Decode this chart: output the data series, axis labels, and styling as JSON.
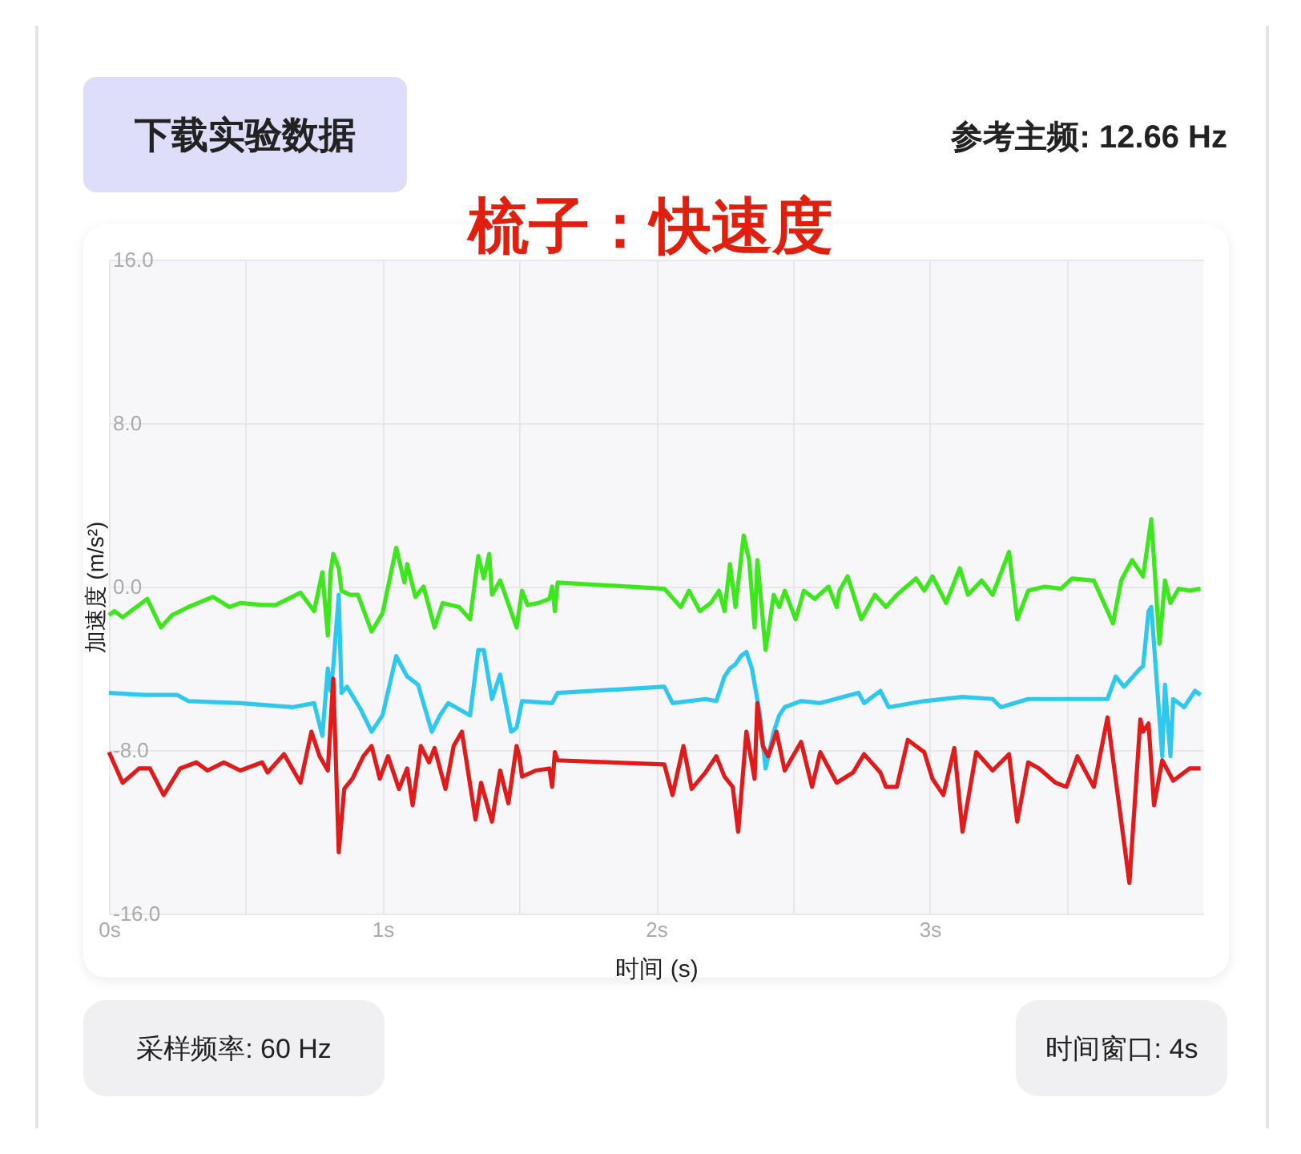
{
  "chart_data": {
    "type": "line",
    "title": "梳子：快速度",
    "xlabel": "时间 (s)",
    "ylabel": "加速度 (m/s²)",
    "annotations": [
      "下载实验数据",
      "参考主频: 12.66 Hz",
      "采样频率: 60 Hz",
      "时间窗口: 4s"
    ],
    "xlim": [
      0,
      4
    ],
    "ylim": [
      -16,
      16
    ],
    "xticks": [
      {
        "value": 0,
        "label": "0s"
      },
      {
        "value": 0.5,
        "label": null
      },
      {
        "value": 1,
        "label": "1s"
      },
      {
        "value": 1.5,
        "label": null
      },
      {
        "value": 2,
        "label": "2s"
      },
      {
        "value": 2.5,
        "label": null
      },
      {
        "value": 3,
        "label": "3s"
      },
      {
        "value": 3.5,
        "label": null
      }
    ],
    "yticks": [
      {
        "value": -16,
        "label": "-16.0"
      },
      {
        "value": -8,
        "label": "-8.0"
      },
      {
        "value": 0,
        "label": "0.0"
      },
      {
        "value": 8,
        "label": "8.0"
      },
      {
        "value": 16,
        "label": "16.0"
      }
    ],
    "grid": true,
    "marker": "none",
    "line_style": "solid",
    "series": [
      {
        "color": "#3ee61e",
        "x": [
          0,
          0.02,
          0.05,
          0.14,
          0.19,
          0.23,
          0.29,
          0.38,
          0.44,
          0.48,
          0.56,
          0.61,
          0.7,
          0.75,
          0.78,
          0.8,
          0.81,
          0.82,
          0.84,
          0.85,
          0.88,
          0.91,
          0.96,
          1.0,
          1.05,
          1.08,
          1.09,
          1.12,
          1.15,
          1.19,
          1.22,
          1.28,
          1.32,
          1.35,
          1.37,
          1.39,
          1.4,
          1.43,
          1.49,
          1.51,
          1.53,
          1.57,
          1.61,
          1.62,
          1.63,
          1.64,
          2.03,
          2.09,
          2.12,
          2.16,
          2.2,
          2.23,
          2.25,
          2.27,
          2.29,
          2.32,
          2.34,
          2.36,
          2.37,
          2.4,
          2.43,
          2.45,
          2.47,
          2.51,
          2.54,
          2.58,
          2.63,
          2.66,
          2.67,
          2.7,
          2.75,
          2.8,
          2.84,
          2.88,
          2.95,
          2.98,
          3.01,
          3.06,
          3.11,
          3.14,
          3.19,
          3.23,
          3.29,
          3.32,
          3.36,
          3.42,
          3.48,
          3.52,
          3.6,
          3.67,
          3.7,
          3.74,
          3.78,
          3.81,
          3.84,
          3.86,
          3.88,
          3.91,
          3.95,
          3.99
        ],
        "values": [
          -1.4,
          -1.2,
          -1.5,
          -0.6,
          -2.0,
          -1.4,
          -1.0,
          -0.5,
          -1.0,
          -0.8,
          -0.9,
          -0.9,
          -0.3,
          -1.2,
          0.7,
          -2.4,
          0.7,
          1.6,
          0.9,
          -0.2,
          -0.4,
          -0.4,
          -2.2,
          -1.3,
          1.9,
          0.2,
          1.1,
          -0.5,
          0,
          -2.0,
          -0.8,
          -1.0,
          -1.6,
          1.5,
          0.4,
          1.6,
          -0.4,
          0.3,
          -2.0,
          -0.2,
          -0.9,
          -0.8,
          -0.6,
          0,
          -1.2,
          0.2,
          -0.1,
          -1.0,
          -0.2,
          -1.2,
          -0.8,
          -0.2,
          -1.2,
          1.1,
          -1.0,
          2.5,
          1.3,
          -2.0,
          1.3,
          -3.1,
          -0.4,
          -1.0,
          -0.2,
          -1.6,
          -0.2,
          -0.6,
          0,
          -1.0,
          -0.2,
          0.5,
          -1.6,
          -0.4,
          -1.0,
          -0.4,
          0.4,
          -0.2,
          0.5,
          -0.8,
          0.9,
          -0.4,
          0.3,
          -0.4,
          1.7,
          -1.6,
          -0.2,
          0,
          -0.1,
          0.4,
          0.3,
          -1.8,
          0.3,
          1.3,
          0.5,
          3.3,
          -2.8,
          0.3,
          -0.8,
          -0.1,
          -0.2,
          -0.1
        ]
      },
      {
        "color": "#2ec8ee",
        "x": [
          0,
          0.13,
          0.25,
          0.29,
          0.48,
          0.67,
          0.75,
          0.78,
          0.8,
          0.81,
          0.82,
          0.84,
          0.85,
          0.87,
          0.92,
          0.96,
          1.0,
          1.05,
          1.09,
          1.13,
          1.18,
          1.21,
          1.24,
          1.32,
          1.35,
          1.37,
          1.4,
          1.43,
          1.47,
          1.49,
          1.51,
          1.62,
          1.64,
          2.03,
          2.06,
          2.18,
          2.22,
          2.25,
          2.27,
          2.29,
          2.31,
          2.33,
          2.35,
          2.38,
          2.4,
          2.43,
          2.45,
          2.47,
          2.53,
          2.6,
          2.74,
          2.76,
          2.82,
          2.85,
          2.98,
          3.12,
          3.23,
          3.26,
          3.36,
          3.56,
          3.65,
          3.68,
          3.71,
          3.77,
          3.78,
          3.8,
          3.81,
          3.85,
          3.86,
          3.88,
          3.89,
          3.93,
          3.97,
          3.99
        ],
        "values": [
          -5.2,
          -5.3,
          -5.3,
          -5.6,
          -5.7,
          -5.9,
          -5.7,
          -7.3,
          -4.0,
          -5.1,
          -3.9,
          -0.4,
          -5.2,
          -4.9,
          -6.0,
          -7.1,
          -6.3,
          -3.4,
          -4.4,
          -4.8,
          -7.1,
          -6.3,
          -5.7,
          -6.3,
          -3.1,
          -3.1,
          -5.5,
          -4.3,
          -7.1,
          -6.9,
          -5.6,
          -5.7,
          -5.2,
          -4.9,
          -5.7,
          -5.5,
          -5.6,
          -4.4,
          -4.0,
          -3.8,
          -3.4,
          -3.2,
          -4.0,
          -6.3,
          -8.9,
          -7.1,
          -6.3,
          -5.9,
          -5.6,
          -5.7,
          -5.2,
          -5.7,
          -5.1,
          -5.9,
          -5.6,
          -5.4,
          -5.5,
          -5.9,
          -5.5,
          -5.5,
          -5.5,
          -4.4,
          -4.9,
          -4.0,
          -3.9,
          -1.2,
          -1.0,
          -8.3,
          -4.8,
          -8.3,
          -5.5,
          -5.9,
          -5.1,
          -5.3
        ]
      },
      {
        "color": "#e01b1b",
        "x": [
          0,
          0.05,
          0.11,
          0.15,
          0.2,
          0.26,
          0.32,
          0.36,
          0.42,
          0.48,
          0.56,
          0.58,
          0.64,
          0.7,
          0.74,
          0.77,
          0.8,
          0.82,
          0.84,
          0.86,
          0.89,
          0.93,
          0.96,
          0.99,
          1.02,
          1.06,
          1.09,
          1.11,
          1.14,
          1.17,
          1.19,
          1.23,
          1.26,
          1.29,
          1.34,
          1.36,
          1.4,
          1.43,
          1.46,
          1.49,
          1.5,
          1.51,
          1.56,
          1.61,
          1.62,
          1.63,
          1.64,
          2.03,
          2.06,
          2.1,
          2.13,
          2.18,
          2.22,
          2.25,
          2.28,
          2.3,
          2.33,
          2.36,
          2.37,
          2.39,
          2.41,
          2.44,
          2.47,
          2.53,
          2.57,
          2.6,
          2.64,
          2.66,
          2.72,
          2.76,
          2.82,
          2.84,
          2.88,
          2.92,
          2.98,
          3.01,
          3.05,
          3.09,
          3.12,
          3.17,
          3.23,
          3.29,
          3.32,
          3.36,
          3.4,
          3.46,
          3.5,
          3.54,
          3.6,
          3.65,
          3.73,
          3.77,
          3.78,
          3.8,
          3.82,
          3.85,
          3.89,
          3.95,
          3.99
        ],
        "values": [
          -8.1,
          -9.6,
          -8.9,
          -8.9,
          -10.2,
          -8.9,
          -8.6,
          -9.0,
          -8.6,
          -9.0,
          -8.6,
          -9.1,
          -8.2,
          -9.6,
          -7.1,
          -8.3,
          -9.0,
          -4.5,
          -13.0,
          -9.9,
          -9.4,
          -8.3,
          -7.8,
          -9.4,
          -8.3,
          -9.9,
          -8.9,
          -10.7,
          -7.8,
          -8.6,
          -7.9,
          -9.9,
          -7.8,
          -7.1,
          -11.4,
          -9.6,
          -11.5,
          -9.0,
          -10.6,
          -7.8,
          -8.3,
          -9.3,
          -9.0,
          -8.9,
          -9.8,
          -8.1,
          -8.5,
          -8.7,
          -10.2,
          -7.8,
          -9.9,
          -9.1,
          -8.3,
          -9.3,
          -9.8,
          -12.0,
          -7.1,
          -9.4,
          -5.7,
          -7.8,
          -8.3,
          -7.1,
          -9.0,
          -7.6,
          -9.8,
          -8.1,
          -9.1,
          -9.6,
          -9.1,
          -8.2,
          -9.1,
          -9.8,
          -9.8,
          -7.5,
          -8.1,
          -9.4,
          -10.2,
          -7.9,
          -12.0,
          -8.1,
          -9.0,
          -8.2,
          -11.5,
          -8.6,
          -8.9,
          -9.6,
          -9.8,
          -8.3,
          -9.8,
          -6.4,
          -14.5,
          -6.5,
          -7.1,
          -6.7,
          -10.7,
          -8.5,
          -9.5,
          -8.9,
          -8.9
        ]
      }
    ]
  }
}
